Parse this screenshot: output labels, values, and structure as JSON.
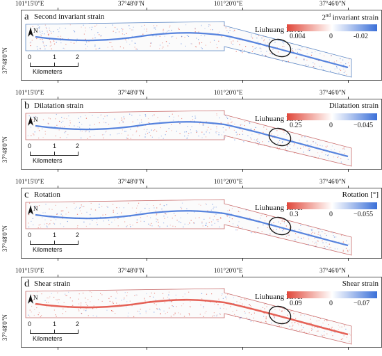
{
  "coords_top": [
    "101°15'0\"E",
    "37°48'0\"N",
    "101°20'0\"E",
    "37°46'0\"N"
  ],
  "lat_label": "37°48'0\"N",
  "river_label": "Liuhuang River",
  "scale": {
    "ticks": [
      "0",
      "1",
      "2"
    ],
    "unit": "Kilometers"
  },
  "north_label": "N",
  "colors": {
    "negative": "#3a6fd8",
    "positive": "#e0473a"
  },
  "panels": [
    {
      "letter": "a",
      "title": "Second invariant strain",
      "legend": {
        "title_sup": "nd",
        "title_pre": "2",
        "title_post": " invariant strain",
        "left": "0.004",
        "mid": "0",
        "right": "-0.02"
      },
      "dominant": "blue"
    },
    {
      "letter": "b",
      "title": "Dilatation strain",
      "legend": {
        "title_sup": "",
        "title_pre": "Dilatation strain",
        "title_post": "",
        "left": "0.25",
        "mid": "0",
        "right": "−0.045"
      },
      "dominant": "blue"
    },
    {
      "letter": "c",
      "title": "Rotation",
      "legend": {
        "title_sup": "",
        "title_pre": "Rotation [°]",
        "title_post": "",
        "left": "0.3",
        "mid": "0",
        "right": "−0.055"
      },
      "dominant": "blue"
    },
    {
      "letter": "d",
      "title": "Shear strain",
      "legend": {
        "title_sup": "",
        "title_pre": "Shear strain",
        "title_post": "",
        "left": "0.09",
        "mid": "0",
        "right": "−0.07"
      },
      "dominant": "red"
    }
  ]
}
